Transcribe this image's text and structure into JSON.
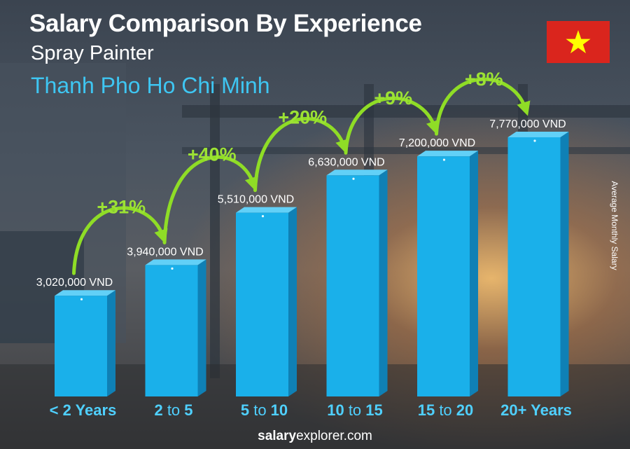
{
  "header": {
    "title": "Salary Comparison By Experience",
    "subtitle": "Spray Painter",
    "location": "Thanh Pho Ho Chi Minh"
  },
  "flag": {
    "country": "Vietnam",
    "background": "#da251d",
    "star": "#ffff00",
    "icon": "star-icon"
  },
  "side_label": "Average Monthly Salary",
  "footer": {
    "brand_bold": "salary",
    "brand_rest": "explorer.com"
  },
  "chart_data": {
    "type": "bar",
    "categories": [
      "< 2 Years",
      "2 to 5",
      "5 to 10",
      "10 to 15",
      "15 to 20",
      "20+ Years"
    ],
    "category_parts": [
      [
        "< 2 Years",
        "",
        ""
      ],
      [
        "2",
        " to ",
        "5"
      ],
      [
        "5",
        " to ",
        "10"
      ],
      [
        "10",
        " to ",
        "15"
      ],
      [
        "15",
        " to ",
        "20"
      ],
      [
        "20+ Years",
        "",
        ""
      ]
    ],
    "values": [
      3020000,
      3940000,
      5510000,
      6630000,
      7200000,
      7770000
    ],
    "value_labels": [
      "3,020,000 VND",
      "3,940,000 VND",
      "5,510,000 VND",
      "6,630,000 VND",
      "7,200,000 VND",
      "7,770,000 VND"
    ],
    "increases": [
      "+31%",
      "+40%",
      "+20%",
      "+9%",
      "+8%"
    ],
    "ylabel": "Average Monthly Salary",
    "unit": "VND",
    "colors": {
      "bar_front": "#1ab0ea",
      "bar_side": "#0f80b5",
      "bar_top": "#62d0f7",
      "category": "#4fd0ff",
      "increase": "#9ce234"
    }
  }
}
